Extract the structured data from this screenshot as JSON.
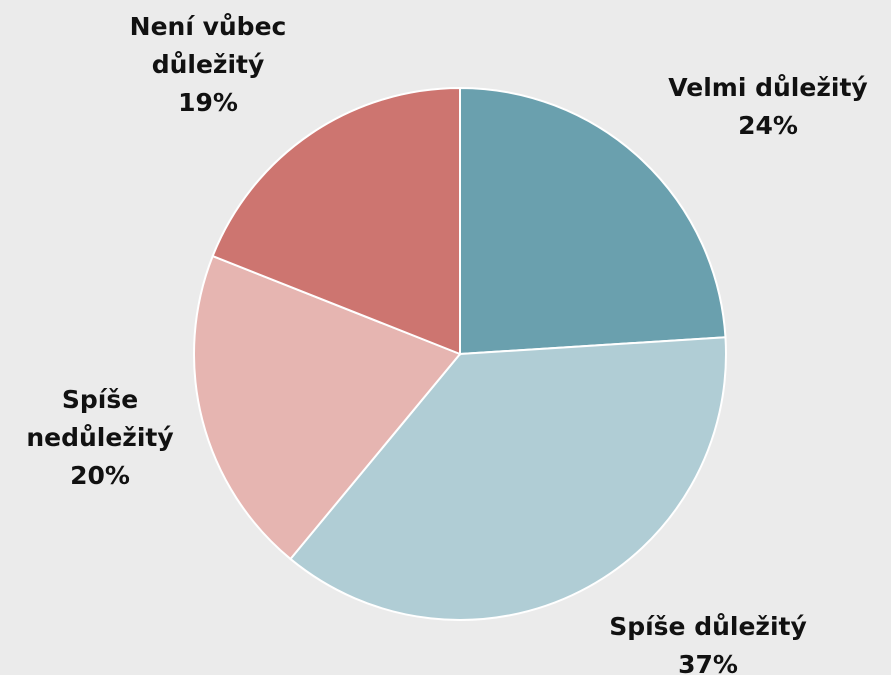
{
  "chart_data": {
    "type": "pie",
    "categories": [
      "Velmi důležitý",
      "Spíše důležitý",
      "Spíše nedůležitý",
      "Není vůbec důležitý"
    ],
    "values": [
      24,
      37,
      20,
      19
    ],
    "value_labels": [
      "24%",
      "37%",
      "20%",
      "19%"
    ],
    "colors": [
      "#6aa0ae",
      "#b0cdd5",
      "#e6b5b1",
      "#cd7570"
    ]
  }
}
